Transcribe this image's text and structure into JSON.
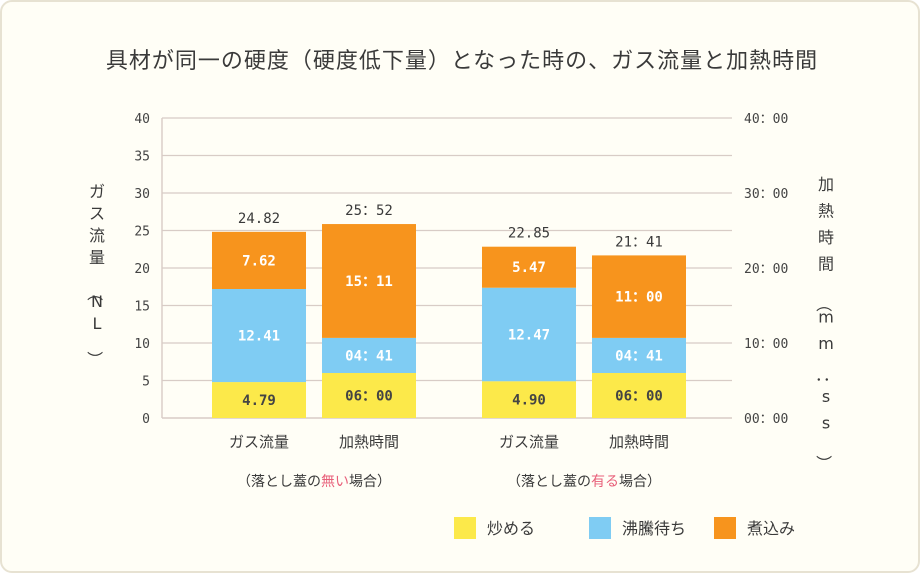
{
  "colors": {
    "simmer": "#fce94a",
    "boil_wait": "#7fccf3",
    "stew": "#f7941d",
    "grid": "#d8ccc6",
    "highlight": "#e8607a"
  },
  "chart_data": {
    "type": "bar",
    "title": "具材が同一の硬度（硬度低下量）となった時の、ガス流量と加熱時間",
    "ylabel_left": "ガス流量（NL）",
    "ylabel_right": "加熱時間（mm：ss）",
    "ylim": [
      0,
      40
    ],
    "yticks_left": [
      "0",
      "5",
      "10",
      "15",
      "20",
      "25",
      "30",
      "35",
      "40"
    ],
    "yticks_right": [
      "00：00",
      "10：00",
      "20：00",
      "30：00",
      "40：00"
    ],
    "legend": [
      "炒める",
      "沸騰待ち",
      "煮込み"
    ],
    "series": [
      {
        "name": "炒める",
        "values": [
          4.79,
          6.0,
          4.9,
          6.0
        ]
      },
      {
        "name": "沸騰待ち",
        "values": [
          12.41,
          4.68,
          12.47,
          4.68
        ]
      },
      {
        "name": "煮込み",
        "values": [
          7.62,
          15.18,
          5.47,
          11.0
        ]
      }
    ],
    "segment_labels": [
      [
        "4.79",
        "12.41",
        "7.62"
      ],
      [
        "06：00",
        "04：41",
        "15：11"
      ],
      [
        "4.90",
        "12.47",
        "5.47"
      ],
      [
        "06：00",
        "04：41",
        "11：00"
      ]
    ],
    "totals": [
      24.82,
      25.87,
      22.85,
      21.68
    ],
    "total_labels": [
      "24.82",
      "25：52",
      "22.85",
      "21：41"
    ],
    "categories": [
      "ガス流量",
      "加熱時間",
      "ガス流量",
      "加熱時間"
    ],
    "groups": [
      {
        "pre": "（落とし蓋の",
        "em": "無い",
        "post": "場合）"
      },
      {
        "pre": "（落とし蓋の",
        "em": "有る",
        "post": "場合）"
      }
    ]
  }
}
